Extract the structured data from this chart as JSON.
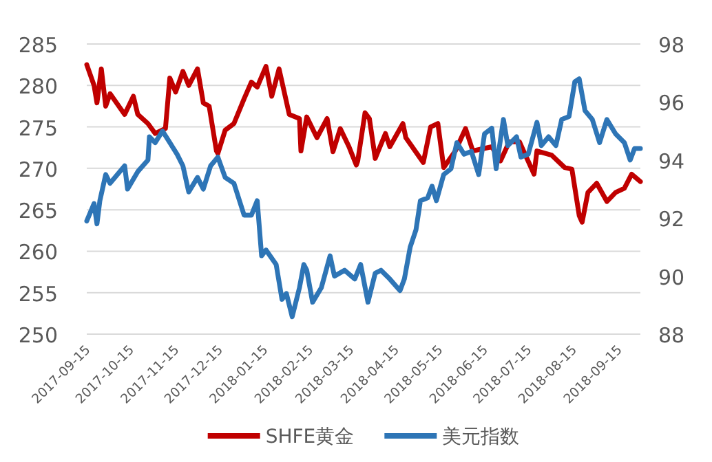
{
  "chart_data": {
    "type": "line",
    "xlim": [
      "2017-09-15",
      "2018-09-30"
    ],
    "xticks": [
      "2017-09-15",
      "2017-10-15",
      "2017-11-15",
      "2017-12-15",
      "2018-01-15",
      "2018-02-15",
      "2018-03-15",
      "2018-04-15",
      "2018-05-15",
      "2018-06-15",
      "2018-07-15",
      "2018-08-15",
      "2018-09-15"
    ],
    "ylim": [
      250,
      285
    ],
    "yticks": [
      250,
      255,
      260,
      265,
      270,
      275,
      280,
      285
    ],
    "y2lim": [
      88,
      98
    ],
    "y2ticks": [
      88,
      90,
      92,
      94,
      96,
      98
    ],
    "grid": "y",
    "legend": "bottom",
    "marker": "none",
    "line_style": "solid",
    "series": [
      {
        "name": "SHFE黄金",
        "color": "#c00000",
        "x": [
          "2017-09-15",
          "2017-09-20",
          "2017-09-22",
          "2017-09-25",
          "2017-09-28",
          "2017-10-01",
          "2017-10-11",
          "2017-10-17",
          "2017-10-20",
          "2017-10-27",
          "2017-11-01",
          "2017-11-08",
          "2017-11-11",
          "2017-11-15",
          "2017-11-20",
          "2017-11-24",
          "2017-11-30",
          "2017-12-04",
          "2017-12-08",
          "2017-12-13",
          "2017-12-14",
          "2017-12-19",
          "2017-12-25",
          "2018-01-01",
          "2018-01-06",
          "2018-01-10",
          "2018-01-16",
          "2018-01-20",
          "2018-01-25",
          "2018-02-01",
          "2018-02-08",
          "2018-02-09",
          "2018-02-13",
          "2018-02-20",
          "2018-02-27",
          "2018-03-03",
          "2018-03-08",
          "2018-03-14",
          "2018-03-19",
          "2018-03-20",
          "2018-03-25",
          "2018-03-28",
          "2018-04-01",
          "2018-04-08",
          "2018-04-11",
          "2018-04-20",
          "2018-04-22",
          "2018-05-04",
          "2018-05-09",
          "2018-05-14",
          "2018-05-18",
          "2018-05-26",
          "2018-06-02",
          "2018-06-07",
          "2018-06-20",
          "2018-06-26",
          "2018-07-02",
          "2018-07-09",
          "2018-07-19",
          "2018-07-21",
          "2018-07-31",
          "2018-08-09",
          "2018-08-14",
          "2018-08-19",
          "2018-08-21",
          "2018-08-25",
          "2018-08-31",
          "2018-09-07",
          "2018-09-13",
          "2018-09-19",
          "2018-09-24",
          "2018-09-30"
        ],
        "values": [
          282.5,
          280,
          277.9,
          282,
          277.5,
          279,
          276.5,
          278.7,
          276.5,
          275.4,
          274.2,
          274.8,
          280.9,
          279.2,
          281.7,
          280,
          282,
          277.9,
          277.5,
          272.1,
          271.8,
          274.6,
          275.4,
          278.4,
          280.4,
          279.8,
          282.3,
          278.7,
          282,
          276.5,
          276,
          272.1,
          276.2,
          273.7,
          276,
          272,
          274.8,
          272.6,
          270.4,
          270.9,
          276.7,
          276,
          271.2,
          274.2,
          272.6,
          275.4,
          273.7,
          270.7,
          275,
          275.4,
          270.1,
          272.1,
          274.8,
          272.1,
          272.6,
          270.9,
          273.2,
          273.2,
          269.3,
          272.1,
          271.6,
          270.1,
          269.9,
          264.3,
          263.5,
          267.1,
          268.2,
          266,
          267.1,
          267.6,
          269.3,
          268.4
        ]
      },
      {
        "name": "美元指数",
        "color": "#2e75b6",
        "axis": "y2",
        "x": [
          "2017-09-15",
          "2017-09-20",
          "2017-09-22",
          "2017-09-24",
          "2017-09-28",
          "2017-10-01",
          "2017-10-11",
          "2017-10-13",
          "2017-10-20",
          "2017-10-27",
          "2017-10-28",
          "2017-11-01",
          "2017-11-06",
          "2017-11-11",
          "2017-11-16",
          "2017-11-20",
          "2017-11-24",
          "2017-11-30",
          "2017-12-04",
          "2017-12-09",
          "2017-12-14",
          "2017-12-19",
          "2017-12-25",
          "2018-01-01",
          "2018-01-06",
          "2018-01-10",
          "2018-01-13",
          "2018-01-16",
          "2018-01-23",
          "2018-01-27",
          "2018-01-30",
          "2018-02-03",
          "2018-02-08",
          "2018-02-11",
          "2018-02-13",
          "2018-02-17",
          "2018-02-23",
          "2018-03-01",
          "2018-03-04",
          "2018-03-11",
          "2018-03-18",
          "2018-03-22",
          "2018-03-27",
          "2018-04-01",
          "2018-04-05",
          "2018-04-11",
          "2018-04-18",
          "2018-04-21",
          "2018-04-25",
          "2018-04-29",
          "2018-05-02",
          "2018-05-07",
          "2018-05-10",
          "2018-05-13",
          "2018-05-18",
          "2018-05-23",
          "2018-05-27",
          "2018-06-01",
          "2018-06-06",
          "2018-06-11",
          "2018-06-15",
          "2018-06-20",
          "2018-06-23",
          "2018-06-28",
          "2018-07-01",
          "2018-07-07",
          "2018-07-10",
          "2018-07-15",
          "2018-07-21",
          "2018-07-24",
          "2018-07-29",
          "2018-08-03",
          "2018-08-07",
          "2018-08-12",
          "2018-08-16",
          "2018-08-19",
          "2018-08-23",
          "2018-08-28",
          "2018-09-02",
          "2018-09-07",
          "2018-09-13",
          "2018-09-19",
          "2018-09-23",
          "2018-09-26",
          "2018-09-30"
        ],
        "values": [
          91.9,
          92.5,
          91.8,
          92.6,
          93.5,
          93.2,
          93.8,
          93,
          93.6,
          94,
          94.8,
          94.6,
          95,
          94.6,
          94.2,
          93.8,
          92.9,
          93.4,
          93,
          93.8,
          94.1,
          93.4,
          93.2,
          92.1,
          92.1,
          92.6,
          90.7,
          90.9,
          90.4,
          89.2,
          89.4,
          88.6,
          89.6,
          90.4,
          90.2,
          89.1,
          89.6,
          90.7,
          90,
          90.2,
          89.9,
          90.4,
          89.1,
          90.1,
          90.2,
          89.9,
          89.5,
          89.9,
          91,
          91.6,
          92.6,
          92.7,
          93.1,
          92.6,
          93.5,
          93.7,
          94.6,
          94.2,
          94.3,
          93.5,
          94.9,
          95.1,
          93.7,
          95.4,
          94.5,
          94.8,
          94.1,
          94.2,
          95.3,
          94.5,
          94.8,
          94.5,
          95.4,
          95.5,
          96.7,
          96.8,
          95.7,
          95.4,
          94.6,
          95.4,
          94.9,
          94.6,
          94,
          94.4,
          94.4
        ]
      }
    ]
  }
}
